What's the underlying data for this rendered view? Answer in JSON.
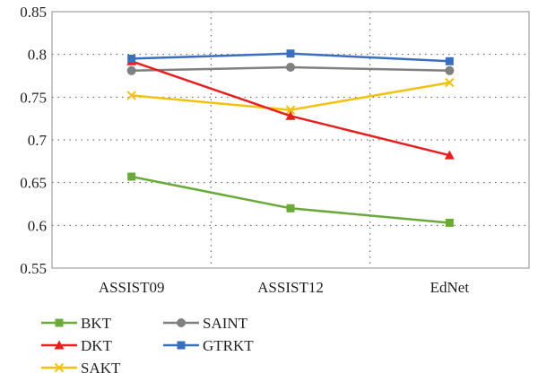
{
  "chart_data": {
    "type": "line",
    "title": "",
    "xlabel": "",
    "ylabel": "",
    "categories": [
      "ASSIST09",
      "ASSIST12",
      "EdNet"
    ],
    "ylim": [
      0.55,
      0.85
    ],
    "yticks": [
      "0.55",
      "0.6",
      "0.65",
      "0.7",
      "0.75",
      "0.8",
      "0.85"
    ],
    "grid": "dotted, both axes",
    "legend_position": "bottom-left, below plot",
    "series": [
      {
        "name": "BKT",
        "values": [
          0.657,
          0.62,
          0.603
        ],
        "color": "#6aaa3a",
        "marker": "square"
      },
      {
        "name": "DKT",
        "values": [
          0.792,
          0.728,
          0.682
        ],
        "color": "#e62020",
        "marker": "triangle"
      },
      {
        "name": "SAKT",
        "values": [
          0.752,
          0.735,
          0.767
        ],
        "color": "#f2c20f",
        "marker": "x"
      },
      {
        "name": "SAINT",
        "values": [
          0.781,
          0.785,
          0.781
        ],
        "color": "#808080",
        "marker": "circle"
      },
      {
        "name": "GTRKT",
        "values": [
          0.795,
          0.801,
          0.792
        ],
        "color": "#3a6fc0",
        "marker": "square"
      }
    ]
  }
}
